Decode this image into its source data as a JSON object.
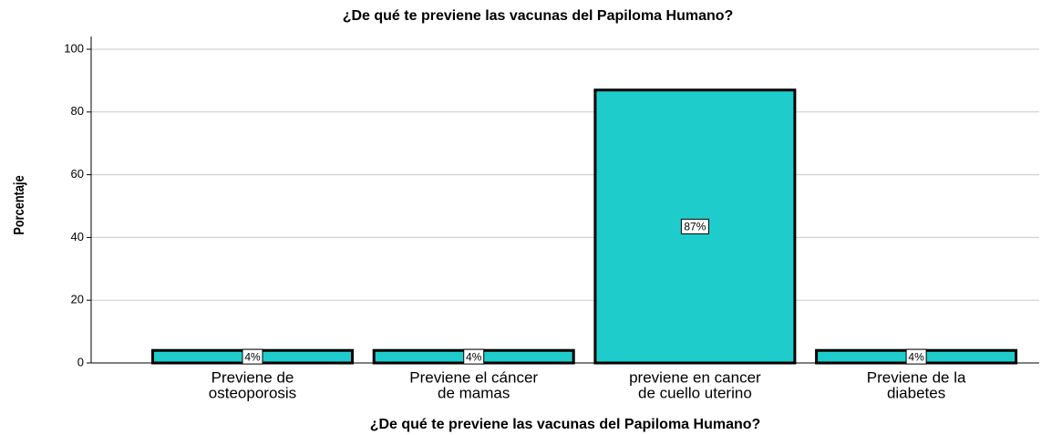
{
  "chart_data": {
    "type": "bar",
    "title": "¿De qué te previene las vacunas del Papiloma Humano?",
    "x_label": "¿De qué te previene las vacunas del Papiloma Humano?",
    "y_label": "Porcentaje",
    "categories": [
      [
        "Previene de",
        "osteoporosis"
      ],
      [
        "Previene el cáncer",
        "de mamas"
      ],
      [
        "previene en cancer",
        "de cuello uterino"
      ],
      [
        "Previene de la",
        "diabetes"
      ]
    ],
    "values": [
      4,
      4,
      87,
      4
    ],
    "value_labels": [
      "4%",
      "4%",
      "87%",
      "4%"
    ],
    "color": "#1fcccc",
    "ylim": [
      0,
      100
    ],
    "yticks": [
      0,
      20,
      40,
      60,
      80,
      100
    ],
    "grid": true
  }
}
